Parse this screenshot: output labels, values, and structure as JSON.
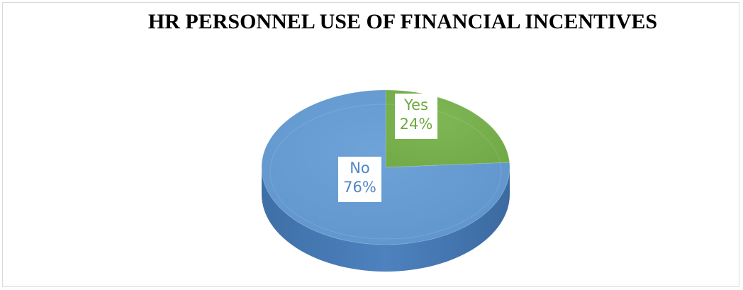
{
  "chart_data": {
    "type": "pie",
    "title": "HR PERSONNEL USE OF FINANCIAL INCENTIVES",
    "slices": [
      {
        "label": "Yes",
        "value": 24,
        "value_text": "24%",
        "color": "#7cb452"
      },
      {
        "label": "No",
        "value": 76,
        "value_text": "76%",
        "color": "#6a9fd4"
      }
    ],
    "style": "3d",
    "legend": "none"
  }
}
